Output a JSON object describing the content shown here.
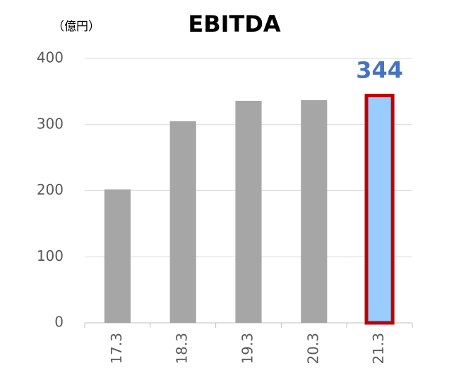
{
  "chart_data": {
    "type": "bar",
    "title": "EBITDA",
    "unit_label": "（億円）",
    "categories": [
      "17.3",
      "18.3",
      "19.3",
      "20.3",
      "21.3"
    ],
    "values": [
      202,
      305,
      336,
      337,
      344
    ],
    "colors": [
      "#a6a6a6",
      "#a6a6a6",
      "#a6a6a6",
      "#a6a6a6",
      "#99ccff"
    ],
    "edgecolors": [
      null,
      null,
      null,
      null,
      "#c00000"
    ],
    "data_label_indices": [
      4
    ],
    "data_label_color": "#4472c4",
    "ylim": [
      0,
      400
    ],
    "yticks": [
      0,
      100,
      200,
      300,
      400
    ],
    "grid": true
  }
}
